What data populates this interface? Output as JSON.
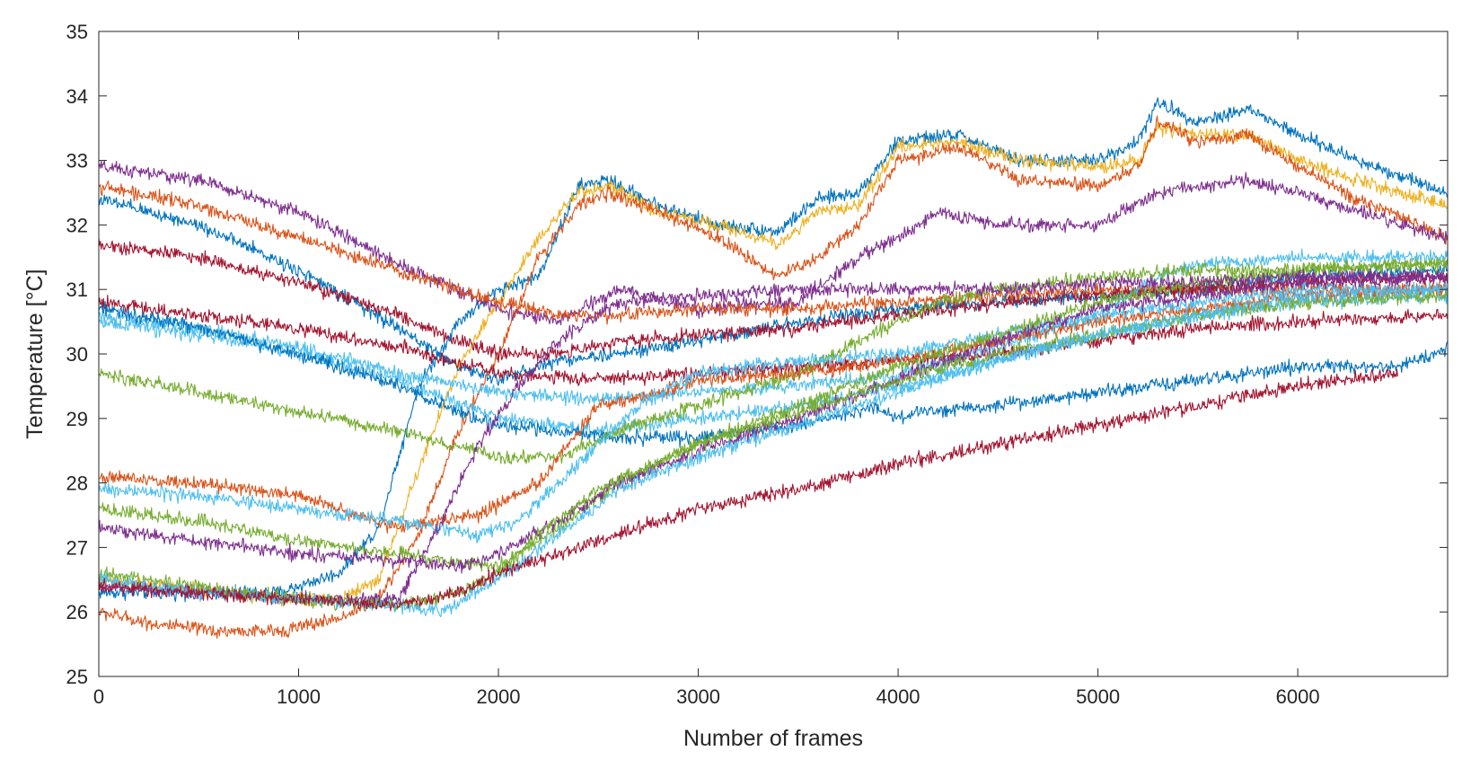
{
  "chart_data": {
    "type": "line",
    "title": "",
    "xlabel": "Number of frames",
    "ylabel": "Temperature [°C]",
    "xlim": [
      0,
      6750
    ],
    "ylim": [
      25,
      35
    ],
    "xticks": [
      0,
      1000,
      2000,
      3000,
      4000,
      5000,
      6000
    ],
    "yticks": [
      25,
      26,
      27,
      28,
      29,
      30,
      31,
      32,
      33,
      34,
      35
    ],
    "grid": false,
    "legend": "none",
    "noise_amplitude": 0.08,
    "series": [
      {
        "color": "#0072BD",
        "x": [
          0,
          300,
          600,
          900,
          1200,
          1400,
          1600,
          1800,
          2000,
          2200,
          2400,
          2550,
          2800,
          3100,
          3400,
          3600,
          3800,
          4000,
          4300,
          4600,
          5000,
          5200,
          5300,
          5500,
          5750,
          6000,
          6300,
          6750
        ],
        "y": [
          26.3,
          26.3,
          26.3,
          26.3,
          26.6,
          27.3,
          29.5,
          30.5,
          31.0,
          31.2,
          32.6,
          32.7,
          32.3,
          32.0,
          31.9,
          32.4,
          32.5,
          33.3,
          33.4,
          33.0,
          33.0,
          33.3,
          33.9,
          33.6,
          33.8,
          33.4,
          33.0,
          32.5
        ]
      },
      {
        "color": "#EDB120",
        "x": [
          0,
          300,
          600,
          900,
          1200,
          1400,
          1600,
          1800,
          2000,
          2200,
          2400,
          2550,
          2800,
          3100,
          3400,
          3600,
          3800,
          4000,
          4300,
          4600,
          5000,
          5200,
          5300,
          5500,
          5750,
          6000,
          6300,
          6750
        ],
        "y": [
          26.5,
          26.4,
          26.3,
          26.2,
          26.2,
          26.5,
          28.2,
          29.8,
          30.8,
          31.8,
          32.5,
          32.6,
          32.2,
          32.0,
          31.7,
          32.2,
          32.3,
          33.2,
          33.3,
          33.0,
          32.9,
          33.0,
          33.5,
          33.4,
          33.4,
          33.0,
          32.7,
          32.3
        ]
      },
      {
        "color": "#D95319",
        "x": [
          0,
          300,
          600,
          900,
          1200,
          1400,
          1600,
          1800,
          2000,
          2200,
          2400,
          2550,
          2800,
          3100,
          3400,
          3600,
          3800,
          4000,
          4300,
          4600,
          5000,
          5200,
          5300,
          5500,
          5750,
          6000,
          6300,
          6750
        ],
        "y": [
          26.0,
          25.8,
          25.7,
          25.7,
          25.9,
          26.2,
          27.2,
          28.8,
          30.0,
          31.5,
          32.3,
          32.5,
          32.2,
          31.8,
          31.2,
          31.5,
          32.0,
          33.0,
          33.2,
          32.7,
          32.6,
          32.9,
          33.6,
          33.3,
          33.4,
          32.9,
          32.4,
          31.8
        ]
      },
      {
        "color": "#7E2F8E",
        "x": [
          0,
          500,
          1000,
          1500,
          2000,
          2300,
          2600,
          3000,
          3500,
          3800,
          4000,
          4200,
          4500,
          5000,
          5300,
          5750,
          6000,
          6300,
          6750
        ],
        "y": [
          32.9,
          32.7,
          32.2,
          31.4,
          30.7,
          30.5,
          31.0,
          30.7,
          30.8,
          31.5,
          31.8,
          32.2,
          32.0,
          32.0,
          32.5,
          32.7,
          32.5,
          32.2,
          31.8
        ]
      },
      {
        "color": "#0072BD",
        "x": [
          0,
          500,
          1000,
          1500,
          1800,
          2000,
          2300,
          2600,
          3000,
          3500,
          4000,
          4500,
          5000,
          5500,
          6000,
          6750
        ],
        "y": [
          32.4,
          32.0,
          31.3,
          30.4,
          29.8,
          29.6,
          29.9,
          30.0,
          30.2,
          30.5,
          30.7,
          30.8,
          30.9,
          31.0,
          31.2,
          31.3
        ]
      },
      {
        "color": "#D95319",
        "x": [
          0,
          500,
          1000,
          1500,
          2000,
          2300,
          2600,
          3000,
          3500,
          4000,
          4500,
          5000,
          5500,
          6000,
          6750
        ],
        "y": [
          32.6,
          32.3,
          31.8,
          31.3,
          30.8,
          30.6,
          30.6,
          30.7,
          30.7,
          30.8,
          30.9,
          31.0,
          31.0,
          31.0,
          31.0
        ]
      },
      {
        "color": "#A2142F",
        "x": [
          0,
          500,
          1000,
          1500,
          1800,
          2000,
          2300,
          2600,
          3000,
          3500,
          4000,
          4500,
          5000,
          5500,
          6000,
          6750
        ],
        "y": [
          31.7,
          31.5,
          31.1,
          30.6,
          30.2,
          30.0,
          30.0,
          30.2,
          30.3,
          30.4,
          30.6,
          30.8,
          30.9,
          31.0,
          31.1,
          31.2
        ]
      },
      {
        "color": "#A2142F",
        "x": [
          0,
          500,
          1000,
          1500,
          2000,
          2500,
          3000,
          3500,
          4000,
          4500,
          5000,
          5500,
          6000,
          6750
        ],
        "y": [
          30.8,
          30.6,
          30.4,
          30.1,
          29.7,
          29.6,
          29.7,
          29.8,
          29.9,
          30.0,
          30.2,
          30.4,
          30.5,
          30.6
        ]
      },
      {
        "color": "#4DBEEE",
        "x": [
          0,
          500,
          1000,
          1500,
          2000,
          2500,
          3000,
          3500,
          4000,
          4500,
          5000,
          5300,
          5500,
          6000,
          6750
        ],
        "y": [
          30.6,
          30.4,
          30.1,
          29.7,
          29.4,
          29.3,
          29.4,
          29.5,
          29.7,
          30.1,
          30.6,
          31.2,
          31.4,
          31.5,
          31.5
        ]
      },
      {
        "color": "#4DBEEE",
        "x": [
          0,
          500,
          1000,
          1500,
          2000,
          2500,
          3000,
          3500,
          4000,
          4500,
          5000,
          5500,
          6000,
          6750
        ],
        "y": [
          30.5,
          30.3,
          30.0,
          29.6,
          29.0,
          28.8,
          29.0,
          29.2,
          29.5,
          29.9,
          30.3,
          30.6,
          30.8,
          30.9
        ]
      },
      {
        "color": "#0072BD",
        "x": [
          0,
          500,
          1000,
          1500,
          1800,
          2000,
          2300,
          2600,
          3000,
          3500,
          3900,
          4000,
          4100,
          4500,
          5000,
          5500,
          6000,
          6500,
          6600,
          6750
        ],
        "y": [
          30.7,
          30.4,
          30.0,
          29.5,
          29.1,
          28.9,
          28.8,
          28.7,
          28.7,
          28.9,
          29.2,
          29.0,
          29.1,
          29.2,
          29.4,
          29.6,
          29.8,
          29.8,
          29.9,
          30.1
        ]
      },
      {
        "color": "#77AC30",
        "x": [
          0,
          500,
          1000,
          1500,
          2000,
          2300,
          2600,
          3000,
          3500,
          4000,
          4200,
          4500,
          5000,
          5500,
          6000,
          6750
        ],
        "y": [
          29.7,
          29.4,
          29.1,
          28.8,
          28.4,
          28.4,
          28.8,
          29.2,
          29.7,
          30.5,
          30.8,
          31.0,
          31.2,
          31.3,
          31.3,
          31.4
        ]
      },
      {
        "color": "#D95319",
        "x": [
          0,
          500,
          1000,
          1500,
          1900,
          2200,
          2500,
          2800,
          3000,
          3500,
          4000,
          4500,
          5000,
          5500,
          6000,
          6750
        ],
        "y": [
          28.1,
          28.0,
          27.8,
          27.3,
          27.5,
          28.0,
          29.2,
          29.4,
          29.6,
          29.7,
          29.9,
          30.2,
          30.5,
          30.7,
          30.9,
          31.0
        ]
      },
      {
        "color": "#4DBEEE",
        "x": [
          0,
          500,
          1000,
          1500,
          1900,
          2100,
          2400,
          2700,
          3000,
          3500,
          4000,
          4500,
          5000,
          5500,
          6000,
          6750
        ],
        "y": [
          27.9,
          27.8,
          27.6,
          27.4,
          27.2,
          27.4,
          28.3,
          29.2,
          29.7,
          29.9,
          30.0,
          30.3,
          30.6,
          30.8,
          31.0,
          31.0
        ]
      },
      {
        "color": "#77AC30",
        "x": [
          0,
          500,
          1000,
          1500,
          2000,
          2300,
          2600,
          3000,
          3500,
          4000,
          4500,
          5000,
          5500,
          6000,
          6750
        ],
        "y": [
          27.6,
          27.4,
          27.1,
          26.9,
          26.7,
          27.3,
          28.0,
          28.6,
          29.2,
          29.8,
          30.3,
          30.8,
          31.1,
          31.3,
          31.4
        ]
      },
      {
        "color": "#7E2F8E",
        "x": [
          0,
          500,
          1000,
          1500,
          1800,
          2000,
          2300,
          2600,
          3000,
          3500,
          4000,
          4500,
          5000,
          5500,
          6000,
          6750
        ],
        "y": [
          27.3,
          27.1,
          26.9,
          26.8,
          26.7,
          26.9,
          27.4,
          28.0,
          28.5,
          29.0,
          29.6,
          30.2,
          30.7,
          30.9,
          31.1,
          31.2
        ]
      },
      {
        "color": "#7E2F8E",
        "x": [
          0,
          500,
          1000,
          1500,
          1700,
          1900,
          2100,
          2300,
          2600,
          3000,
          3500,
          4000,
          4500,
          5000,
          5500,
          6000,
          6750
        ],
        "y": [
          26.4,
          26.3,
          26.2,
          26.2,
          27.3,
          28.6,
          29.5,
          30.2,
          30.8,
          30.9,
          31.0,
          31.0,
          31.0,
          31.1,
          31.1,
          31.2,
          31.2
        ]
      },
      {
        "color": "#77AC30",
        "x": [
          0,
          500,
          1000,
          1500,
          1800,
          2000,
          2200,
          2500,
          3000,
          3500,
          4000,
          4500,
          5000,
          5500,
          6000,
          6750
        ],
        "y": [
          26.6,
          26.4,
          26.2,
          26.1,
          26.3,
          26.6,
          27.2,
          27.9,
          28.6,
          29.1,
          29.6,
          30.0,
          30.3,
          30.6,
          30.8,
          30.9
        ]
      },
      {
        "color": "#4DBEEE",
        "x": [
          0,
          500,
          1000,
          1500,
          1700,
          2000,
          2300,
          2600,
          3000,
          3500,
          4000,
          4500,
          5000,
          5500,
          6000,
          6750
        ],
        "y": [
          26.5,
          26.3,
          26.2,
          26.1,
          26.0,
          26.5,
          27.2,
          27.9,
          28.4,
          28.9,
          29.4,
          29.9,
          30.3,
          30.6,
          30.9,
          31.0
        ]
      },
      {
        "color": "#A2142F",
        "x": [
          0,
          500,
          1000,
          1500,
          1800,
          2000,
          2300,
          2600,
          3000,
          3500,
          4000,
          4500,
          5000,
          5500,
          6000,
          6500
        ],
        "y": [
          26.4,
          26.3,
          26.2,
          26.1,
          26.3,
          26.6,
          26.9,
          27.2,
          27.6,
          27.9,
          28.3,
          28.6,
          28.9,
          29.2,
          29.5,
          29.7
        ]
      }
    ]
  }
}
